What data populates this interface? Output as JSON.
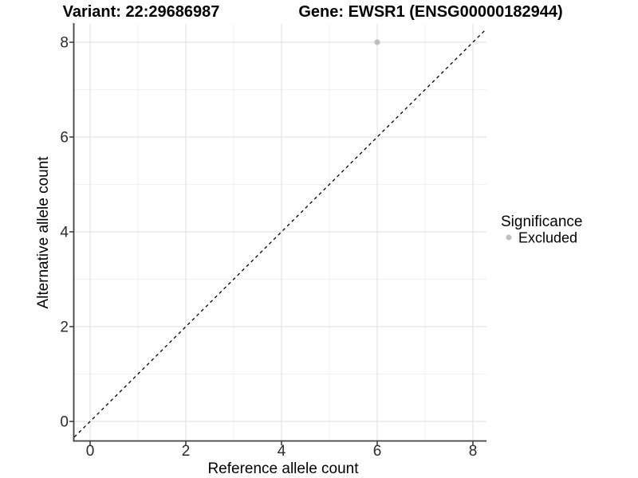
{
  "chart_data": {
    "type": "scatter",
    "title_left": "Variant: 22:29686987",
    "title_right": "Gene: EWSR1 (ENSG00000182944)",
    "xlabel": "Reference allele count",
    "ylabel": "Alternative allele count",
    "x_ticks": [
      "0",
      "2",
      "4",
      "6",
      "8"
    ],
    "y_ticks": [
      "0",
      "2",
      "4",
      "6",
      "8"
    ],
    "xlim": [
      -0.33,
      8.28
    ],
    "ylim": [
      -0.4,
      8.4
    ],
    "grid": "major gridlines at even values, minor at odd values, light gray on white panel",
    "legend_position": "right",
    "series": [
      {
        "name": "Excluded",
        "points": [
          {
            "x": 6,
            "y": 8
          }
        ]
      }
    ],
    "reference_line": {
      "kind": "identity (y = x)",
      "style": "dashed",
      "color": "#000000"
    },
    "legend": {
      "title": "Significance",
      "entries": [
        {
          "label": "Excluded",
          "color": "#bfbfbf"
        }
      ]
    },
    "colors": {
      "point": "#bfbfbf",
      "grid_major": "#e3e3e3",
      "grid_minor": "#f0f0f0",
      "axis": "#404040",
      "tick_text": "#2b2b2b",
      "title_text": "#000000"
    }
  }
}
